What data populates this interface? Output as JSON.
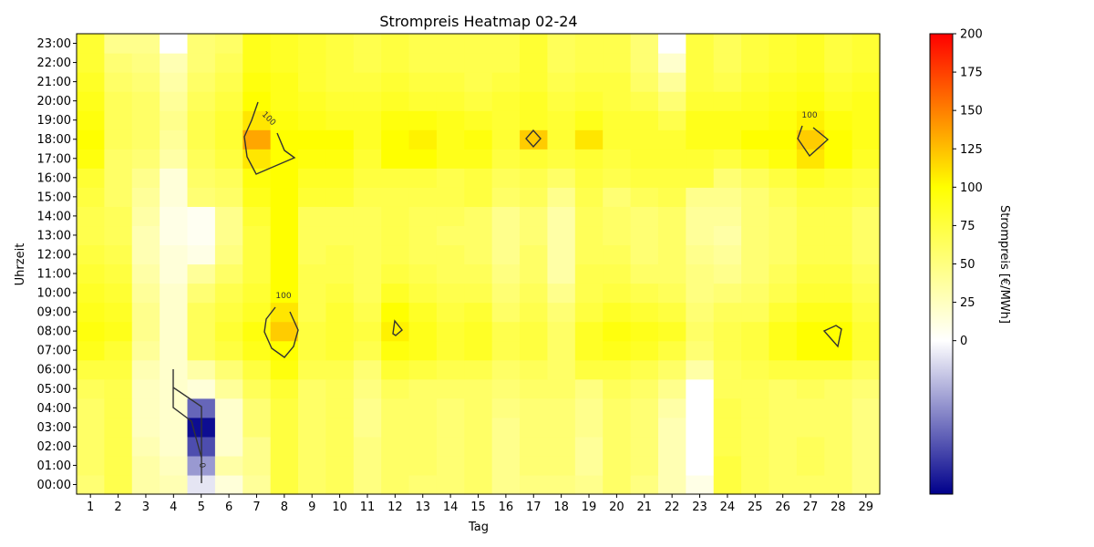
{
  "chart_data": {
    "type": "heatmap",
    "title": "Strompreis Heatmap 02-24",
    "xlabel": "Tag",
    "ylabel": "Uhrzeit",
    "colorbar_label": "Strompreis [€/MWh]",
    "x": [
      "1",
      "2",
      "3",
      "4",
      "5",
      "6",
      "7",
      "8",
      "9",
      "10",
      "11",
      "12",
      "13",
      "14",
      "15",
      "16",
      "17",
      "18",
      "19",
      "20",
      "21",
      "22",
      "23",
      "24",
      "25",
      "26",
      "27",
      "28",
      "29"
    ],
    "y": [
      "00:00",
      "01:00",
      "02:00",
      "03:00",
      "04:00",
      "05:00",
      "06:00",
      "07:00",
      "08:00",
      "09:00",
      "10:00",
      "11:00",
      "12:00",
      "13:00",
      "14:00",
      "15:00",
      "16:00",
      "17:00",
      "18:00",
      "19:00",
      "20:00",
      "21:00",
      "22:00",
      "23:00"
    ],
    "colorbar_ticks": [
      "0",
      "25",
      "50",
      "75",
      "100",
      "125",
      "150",
      "175",
      "200"
    ],
    "colorbar_range": [
      -100,
      200
    ],
    "colorscale": [
      "#00008b",
      "#ffffff",
      "#ffff00",
      "#ff0000"
    ],
    "contour_level_labels": [
      "100",
      "100",
      "100",
      "0"
    ],
    "values": [
      [
        55,
        70,
        35,
        30,
        -10,
        15,
        40,
        75,
        60,
        65,
        50,
        60,
        55,
        55,
        60,
        45,
        50,
        50,
        45,
        60,
        50,
        30,
        10,
        75,
        65,
        60,
        60,
        60,
        50
      ],
      [
        60,
        70,
        35,
        25,
        -40,
        35,
        45,
        75,
        60,
        65,
        50,
        60,
        60,
        55,
        60,
        45,
        55,
        55,
        40,
        60,
        55,
        30,
        0,
        75,
        65,
        60,
        65,
        60,
        50
      ],
      [
        60,
        70,
        30,
        20,
        -70,
        20,
        45,
        75,
        60,
        65,
        50,
        60,
        60,
        55,
        60,
        45,
        55,
        55,
        40,
        60,
        55,
        30,
        0,
        70,
        65,
        60,
        65,
        60,
        50
      ],
      [
        60,
        70,
        25,
        20,
        -95,
        20,
        55,
        75,
        60,
        65,
        45,
        60,
        60,
        55,
        60,
        45,
        55,
        55,
        45,
        60,
        55,
        30,
        0,
        70,
        65,
        60,
        60,
        60,
        50
      ],
      [
        60,
        70,
        25,
        20,
        -60,
        20,
        55,
        75,
        60,
        65,
        45,
        60,
        60,
        55,
        60,
        50,
        55,
        55,
        45,
        60,
        55,
        35,
        0,
        70,
        65,
        60,
        60,
        60,
        50
      ],
      [
        65,
        70,
        25,
        20,
        15,
        40,
        65,
        80,
        60,
        65,
        50,
        65,
        60,
        60,
        60,
        55,
        60,
        60,
        50,
        65,
        60,
        45,
        0,
        65,
        65,
        60,
        65,
        60,
        55
      ],
      [
        75,
        75,
        30,
        20,
        35,
        55,
        75,
        95,
        70,
        70,
        55,
        80,
        75,
        70,
        70,
        60,
        65,
        60,
        75,
        75,
        70,
        60,
        35,
        65,
        70,
        75,
        75,
        75,
        65
      ],
      [
        90,
        80,
        40,
        20,
        65,
        75,
        90,
        100,
        75,
        80,
        70,
        95,
        90,
        80,
        85,
        70,
        75,
        60,
        85,
        90,
        85,
        75,
        55,
        70,
        75,
        90,
        100,
        100,
        80
      ],
      [
        95,
        90,
        45,
        20,
        65,
        80,
        95,
        120,
        75,
        80,
        75,
        105,
        90,
        80,
        85,
        70,
        75,
        60,
        85,
        95,
        90,
        85,
        60,
        70,
        75,
        90,
        100,
        100,
        80
      ],
      [
        90,
        85,
        45,
        20,
        65,
        75,
        85,
        110,
        70,
        80,
        70,
        100,
        85,
        75,
        80,
        60,
        70,
        55,
        75,
        85,
        80,
        75,
        55,
        65,
        65,
        80,
        90,
        90,
        75
      ],
      [
        85,
        80,
        40,
        20,
        55,
        70,
        80,
        100,
        70,
        75,
        65,
        85,
        75,
        70,
        70,
        55,
        65,
        45,
        70,
        75,
        70,
        65,
        50,
        55,
        60,
        70,
        80,
        80,
        70
      ],
      [
        80,
        75,
        35,
        15,
        40,
        60,
        75,
        100,
        70,
        70,
        65,
        75,
        70,
        65,
        65,
        50,
        60,
        35,
        70,
        70,
        60,
        60,
        50,
        45,
        55,
        65,
        75,
        75,
        65
      ],
      [
        75,
        70,
        30,
        15,
        10,
        50,
        75,
        100,
        65,
        70,
        65,
        70,
        65,
        65,
        60,
        45,
        60,
        35,
        65,
        65,
        55,
        60,
        45,
        40,
        55,
        60,
        70,
        70,
        60
      ],
      [
        70,
        65,
        30,
        10,
        5,
        45,
        75,
        100,
        65,
        65,
        65,
        70,
        65,
        60,
        60,
        45,
        55,
        35,
        65,
        60,
        55,
        60,
        40,
        35,
        55,
        60,
        70,
        70,
        60
      ],
      [
        70,
        65,
        35,
        10,
        5,
        45,
        80,
        100,
        65,
        65,
        65,
        70,
        65,
        65,
        60,
        45,
        55,
        35,
        65,
        60,
        55,
        60,
        40,
        40,
        55,
        60,
        70,
        70,
        60
      ],
      [
        75,
        60,
        40,
        15,
        55,
        60,
        90,
        100,
        80,
        80,
        70,
        70,
        70,
        70,
        75,
        60,
        65,
        45,
        70,
        55,
        65,
        70,
        45,
        45,
        55,
        65,
        75,
        75,
        70
      ],
      [
        80,
        60,
        45,
        15,
        60,
        65,
        95,
        100,
        85,
        85,
        75,
        75,
        75,
        70,
        75,
        65,
        70,
        60,
        75,
        70,
        75,
        75,
        75,
        55,
        65,
        75,
        85,
        80,
        75
      ],
      [
        95,
        60,
        55,
        35,
        65,
        75,
        110,
        100,
        95,
        95,
        80,
        100,
        100,
        90,
        90,
        75,
        80,
        75,
        80,
        75,
        80,
        80,
        80,
        75,
        85,
        95,
        110,
        100,
        85
      ],
      [
        100,
        65,
        60,
        40,
        70,
        80,
        135,
        100,
        100,
        100,
        85,
        100,
        105,
        90,
        95,
        80,
        120,
        80,
        110,
        80,
        80,
        80,
        90,
        90,
        100,
        100,
        120,
        100,
        90
      ],
      [
        95,
        65,
        60,
        45,
        70,
        80,
        110,
        95,
        90,
        85,
        85,
        95,
        95,
        90,
        85,
        80,
        85,
        80,
        90,
        80,
        80,
        70,
        90,
        90,
        90,
        95,
        105,
        95,
        90
      ],
      [
        90,
        65,
        60,
        40,
        65,
        75,
        100,
        90,
        85,
        80,
        80,
        85,
        80,
        80,
        75,
        80,
        85,
        75,
        80,
        75,
        70,
        55,
        80,
        80,
        85,
        90,
        95,
        85,
        90
      ],
      [
        85,
        60,
        55,
        35,
        60,
        70,
        95,
        90,
        80,
        75,
        75,
        80,
        75,
        75,
        70,
        75,
        80,
        70,
        75,
        75,
        60,
        40,
        75,
        70,
        80,
        85,
        90,
        80,
        85
      ],
      [
        80,
        55,
        50,
        30,
        55,
        65,
        90,
        85,
        80,
        75,
        70,
        75,
        70,
        70,
        70,
        70,
        80,
        65,
        70,
        70,
        55,
        20,
        75,
        65,
        75,
        80,
        85,
        75,
        80
      ],
      [
        80,
        45,
        45,
        0,
        55,
        60,
        90,
        85,
        80,
        75,
        70,
        75,
        70,
        70,
        70,
        70,
        80,
        65,
        70,
        70,
        55,
        0,
        75,
        65,
        75,
        80,
        85,
        75,
        80
      ]
    ]
  }
}
